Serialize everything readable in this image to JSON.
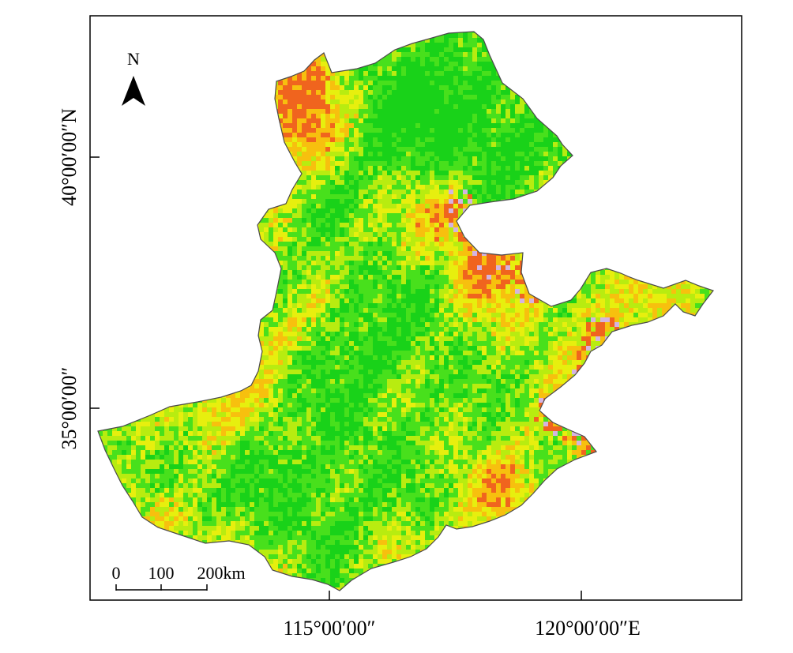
{
  "map": {
    "frame_color": "#000000",
    "lon_labels": [
      "115°00′00″",
      "120°00′00″E"
    ],
    "lat_labels": [
      "40°00′00″N",
      "35°00′00″"
    ],
    "north_arrow": {
      "letter": "N",
      "icon": "north-arrow-icon"
    },
    "scale_bar": {
      "labels": [
        "0",
        "100",
        "200km"
      ]
    },
    "palette": {
      "dark_green": "#19d219",
      "green": "#48e01c",
      "yellow_green": "#b8ec10",
      "yellow": "#e7ef0e",
      "orange": "#f7c00e",
      "red_orange": "#f0641e",
      "lavender": "#d4b4e0",
      "outline": "#4a4a4a"
    }
  }
}
